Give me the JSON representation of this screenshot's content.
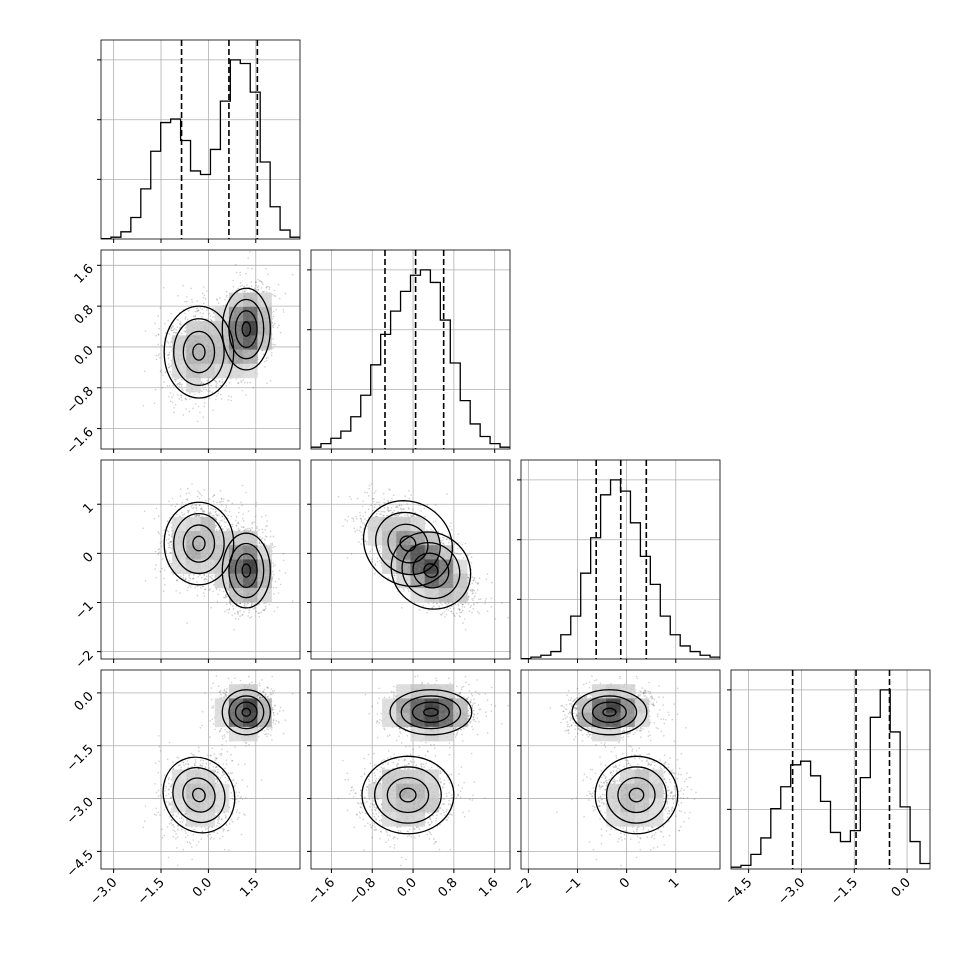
{
  "chart_data": {
    "type": "corner",
    "title": "",
    "parameters": [
      "",
      "",
      "",
      ""
    ],
    "grid": true,
    "quantile_lines": "dashed",
    "axes": [
      {
        "range": [
          -3.4,
          2.9
        ],
        "ticks": [
          -3.0,
          -1.5,
          0.0,
          1.5
        ],
        "tick_labels": [
          "−3.0",
          "−1.5",
          "0.0",
          "1.5"
        ]
      },
      {
        "range": [
          -2.0,
          1.9
        ],
        "ticks": [
          -1.6,
          -0.8,
          0.0,
          0.8,
          1.6
        ],
        "tick_labels": [
          "−1.6",
          "−0.8",
          "0.0",
          "0.8",
          "1.6"
        ]
      },
      {
        "range": [
          -2.15,
          1.9
        ],
        "ticks": [
          -2,
          -1,
          0,
          1
        ],
        "tick_labels": [
          "−2",
          "−1",
          "0",
          "1"
        ]
      },
      {
        "range": [
          -5.0,
          0.65
        ],
        "ticks": [
          -4.5,
          -3.0,
          -1.5,
          0.0
        ],
        "tick_labels": [
          "−4.5",
          "−3.0",
          "−1.5",
          "0.0"
        ]
      }
    ],
    "histograms": [
      {
        "parameter": 0,
        "bin_edges": [
          -3.4,
          -3.085,
          -2.77,
          -2.455,
          -2.14,
          -1.825,
          -1.51,
          -1.195,
          -0.88,
          -0.565,
          -0.25,
          0.065,
          0.38,
          0.695,
          1.01,
          1.325,
          1.64,
          1.955,
          2.27,
          2.585,
          2.9
        ],
        "counts": [
          0.002,
          0.01,
          0.04,
          0.12,
          0.28,
          0.49,
          0.65,
          0.67,
          0.55,
          0.38,
          0.36,
          0.5,
          0.77,
          1.0,
          0.98,
          0.82,
          0.43,
          0.18,
          0.05,
          0.01
        ],
        "quantiles": [
          -0.85,
          0.65,
          1.55
        ]
      },
      {
        "parameter": 1,
        "bin_edges": [
          -2.0,
          -1.805,
          -1.61,
          -1.415,
          -1.22,
          -1.025,
          -0.83,
          -0.635,
          -0.44,
          -0.245,
          -0.05,
          0.145,
          0.34,
          0.535,
          0.73,
          0.925,
          1.12,
          1.315,
          1.51,
          1.705,
          1.9
        ],
        "counts": [
          0.01,
          0.03,
          0.06,
          0.1,
          0.18,
          0.3,
          0.47,
          0.64,
          0.77,
          0.88,
          0.97,
          1.0,
          0.93,
          0.72,
          0.48,
          0.27,
          0.14,
          0.07,
          0.03,
          0.01
        ],
        "quantiles": [
          -0.55,
          0.05,
          0.6
        ]
      },
      {
        "parameter": 2,
        "bin_edges": [
          -2.15,
          -1.9475,
          -1.745,
          -1.5425,
          -1.34,
          -1.1375,
          -0.935,
          -0.7325,
          -0.53,
          -0.3275,
          -0.125,
          0.0775,
          0.28,
          0.4825,
          0.685,
          0.8875,
          1.09,
          1.2925,
          1.495,
          1.6975,
          1.9
        ],
        "counts": [
          0.002,
          0.01,
          0.02,
          0.04,
          0.13,
          0.23,
          0.46,
          0.65,
          0.88,
          0.96,
          0.9,
          0.73,
          0.55,
          0.4,
          0.23,
          0.13,
          0.07,
          0.04,
          0.02,
          0.01
        ],
        "quantiles": [
          -0.62,
          -0.12,
          0.4
        ]
      },
      {
        "parameter": 3,
        "bin_edges": [
          -5.0,
          -4.7175,
          -4.435,
          -4.1525,
          -3.87,
          -3.5875,
          -3.305,
          -3.0225,
          -2.74,
          -2.4575,
          -2.175,
          -1.8925,
          -1.61,
          -1.3275,
          -1.045,
          -0.7625,
          -0.48,
          -0.1975,
          0.085,
          0.3675,
          0.65
        ],
        "counts": [
          0.01,
          0.02,
          0.08,
          0.17,
          0.33,
          0.45,
          0.57,
          0.59,
          0.51,
          0.37,
          0.2,
          0.15,
          0.21,
          0.5,
          0.83,
          0.98,
          0.75,
          0.34,
          0.15,
          0.03
        ],
        "quantiles": [
          -3.25,
          -1.45,
          -0.5
        ]
      }
    ],
    "scatter_panels": [
      {
        "x_param": 0,
        "y_param": 1
      },
      {
        "x_param": 0,
        "y_param": 2
      },
      {
        "x_param": 1,
        "y_param": 2
      },
      {
        "x_param": 0,
        "y_param": 3
      },
      {
        "x_param": 1,
        "y_param": 3
      },
      {
        "x_param": 2,
        "y_param": 3
      }
    ],
    "mixture_components": [
      {
        "weight": 0.38,
        "mean": [
          -0.3,
          -0.1,
          0.2,
          -2.9
        ],
        "sd": [
          0.55,
          0.45,
          0.42,
          0.55
        ]
      },
      {
        "weight": 0.62,
        "mean": [
          1.2,
          0.35,
          -0.35,
          -0.55
        ],
        "sd": [
          0.38,
          0.4,
          0.38,
          0.32
        ]
      }
    ]
  }
}
